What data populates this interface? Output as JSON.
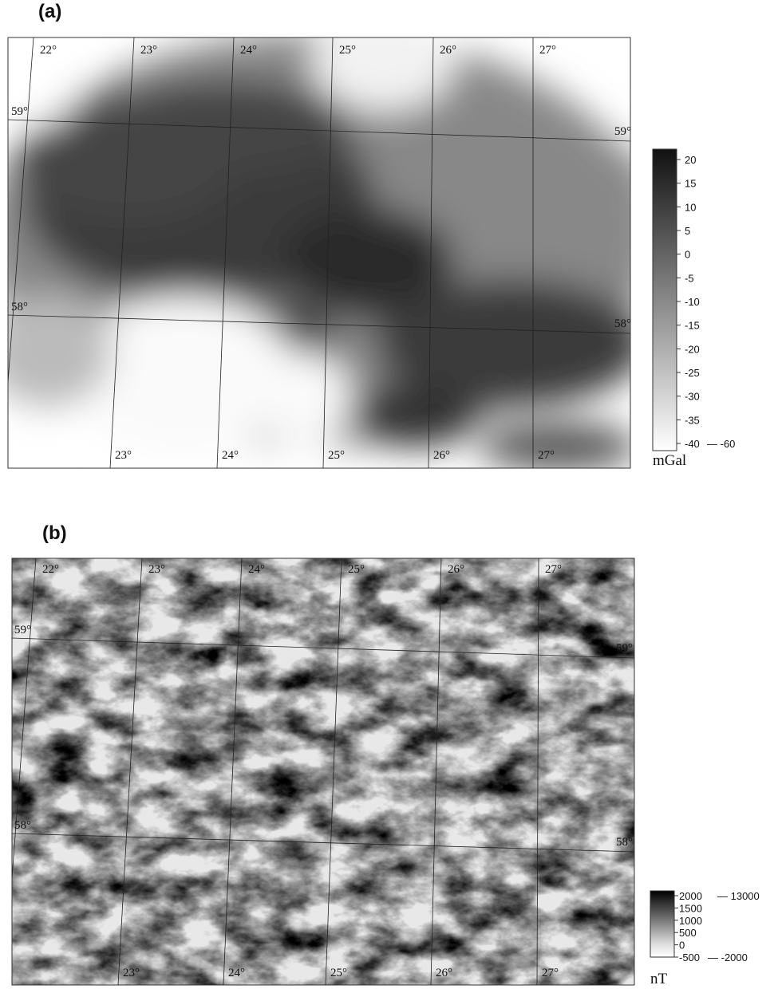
{
  "panels": [
    {
      "label": "(a)",
      "lon_top": [
        "22°",
        "23°",
        "24°",
        "25°",
        "26°",
        "27°"
      ],
      "lat_left": [
        "59°",
        "58°"
      ],
      "lat_right": [
        "59°",
        "58°"
      ],
      "lon_bottom": [
        "23°",
        "24°",
        "25°",
        "26°",
        "27°"
      ],
      "colorbar": {
        "ticks": [
          "20",
          "15",
          "10",
          "5",
          "0",
          "-5",
          "-10",
          "-15",
          "-20",
          "-25",
          "-30",
          "-35",
          "-40"
        ],
        "low_extreme": "— -60",
        "unit": "mGal"
      }
    },
    {
      "label": "(b)",
      "lon_top": [
        "22°",
        "23°",
        "24°",
        "25°",
        "26°",
        "27°"
      ],
      "lat_left": [
        "59°",
        "58°"
      ],
      "lat_right": [
        "59°",
        "58°"
      ],
      "lon_bottom": [
        "23°",
        "24°",
        "25°",
        "26°",
        "27°"
      ],
      "colorbar": {
        "ticks": [
          "2000",
          "1500",
          "1000",
          "500",
          "0",
          "-500"
        ],
        "high_extreme": "— 13000",
        "low_extreme": "— -2000",
        "unit": "nT"
      }
    }
  ]
}
